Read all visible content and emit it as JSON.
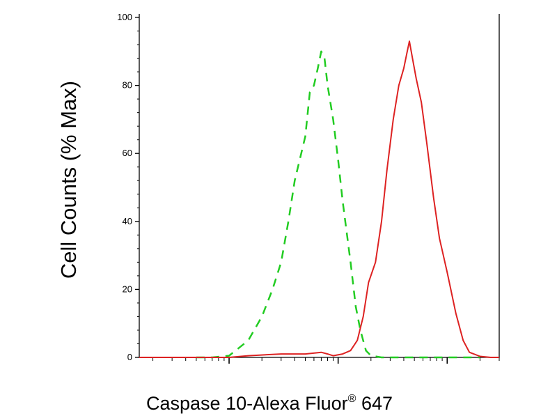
{
  "chart_data": {
    "type": "line",
    "title": "",
    "xlabel": {
      "main": "Caspase 10-Alexa Fluor",
      "symbol": "®",
      "suffix": " 647"
    },
    "ylabel": "Cell Counts (% Max)",
    "x_scale": "log",
    "xlim": [
      0.015,
      30
    ],
    "ylim": [
      0,
      100
    ],
    "yticks": [
      {
        "value": 0,
        "label": "0"
      },
      {
        "value": 20,
        "label": "20"
      },
      {
        "value": 40,
        "label": "40"
      },
      {
        "value": 60,
        "label": "60"
      },
      {
        "value": 80,
        "label": "80"
      },
      {
        "value": 100,
        "label": "100"
      }
    ],
    "x_major_ticks": [
      0.1,
      1,
      10
    ],
    "x_tick_labels_shown": false,
    "grid": false,
    "legend": "none",
    "series": [
      {
        "style": "dashed",
        "color": "#22cc22",
        "points": [
          [
            0.05,
            0
          ],
          [
            0.07,
            0
          ],
          [
            0.1,
            0.5
          ],
          [
            0.12,
            2.5
          ],
          [
            0.15,
            5
          ],
          [
            0.2,
            12
          ],
          [
            0.25,
            20
          ],
          [
            0.3,
            28
          ],
          [
            0.35,
            40
          ],
          [
            0.4,
            52
          ],
          [
            0.5,
            65
          ],
          [
            0.55,
            78
          ],
          [
            0.6,
            80
          ],
          [
            0.65,
            85
          ],
          [
            0.7,
            90
          ],
          [
            0.75,
            88
          ],
          [
            0.8,
            80
          ],
          [
            0.9,
            70
          ],
          [
            1.0,
            58
          ],
          [
            1.1,
            46
          ],
          [
            1.3,
            28
          ],
          [
            1.45,
            15
          ],
          [
            1.6,
            8
          ],
          [
            1.8,
            2
          ],
          [
            2.0,
            0.5
          ],
          [
            2.5,
            0
          ],
          [
            5,
            0
          ],
          [
            10,
            0
          ],
          [
            20,
            0
          ]
        ]
      },
      {
        "style": "solid",
        "color": "#dd2222",
        "points": [
          [
            0.015,
            0
          ],
          [
            0.05,
            0
          ],
          [
            0.1,
            0
          ],
          [
            0.15,
            0.5
          ],
          [
            0.3,
            1
          ],
          [
            0.5,
            1
          ],
          [
            0.7,
            1.5
          ],
          [
            0.8,
            1
          ],
          [
            0.9,
            0.5
          ],
          [
            1.1,
            1
          ],
          [
            1.3,
            2
          ],
          [
            1.5,
            5
          ],
          [
            1.7,
            12
          ],
          [
            1.9,
            22
          ],
          [
            2.2,
            28
          ],
          [
            2.5,
            40
          ],
          [
            2.8,
            55
          ],
          [
            3.2,
            70
          ],
          [
            3.6,
            80
          ],
          [
            4.0,
            85
          ],
          [
            4.3,
            90
          ],
          [
            4.5,
            93
          ],
          [
            4.8,
            88
          ],
          [
            5.2,
            82
          ],
          [
            5.8,
            75
          ],
          [
            6.5,
            63
          ],
          [
            7.5,
            47
          ],
          [
            8.5,
            35
          ],
          [
            10,
            25
          ],
          [
            12,
            13
          ],
          [
            14,
            5
          ],
          [
            16,
            1.5
          ],
          [
            20,
            0.3
          ],
          [
            25,
            0
          ],
          [
            30,
            0
          ]
        ]
      }
    ]
  }
}
